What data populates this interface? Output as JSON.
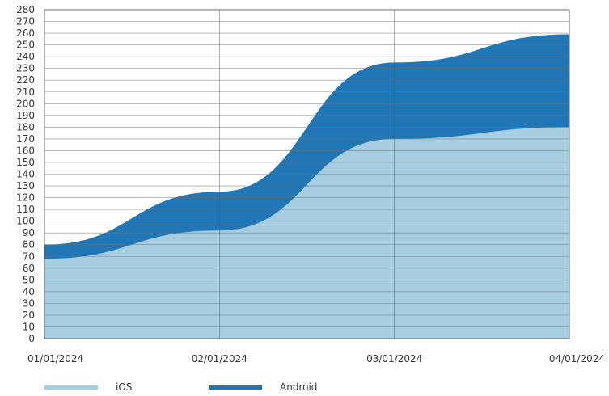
{
  "chart_data": {
    "type": "area",
    "stacked": true,
    "x": [
      "01/01/2024",
      "02/01/2024",
      "03/01/2024",
      "04/01/2024"
    ],
    "ylim": [
      0,
      280
    ],
    "ytick_step": 10,
    "grid": true,
    "legend_position": "bottom-left",
    "series": [
      {
        "name": "iOS",
        "color": "#a6cde0",
        "values": [
          68,
          92,
          170,
          180
        ]
      },
      {
        "name": "Android",
        "color": "#2176b5",
        "values": [
          12,
          33,
          65,
          79
        ]
      }
    ]
  }
}
